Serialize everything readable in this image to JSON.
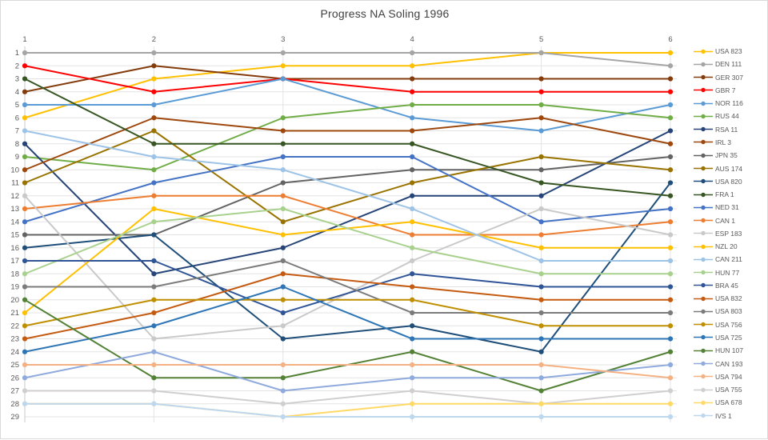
{
  "title": "Progress NA Soling 1996",
  "chart_data": {
    "type": "line",
    "title": "Progress NA Soling 1996",
    "xlabel": "",
    "ylabel": "",
    "x_ticks": [
      1,
      2,
      3,
      4,
      5,
      6
    ],
    "y_ticks": [
      1,
      2,
      3,
      4,
      5,
      6,
      7,
      8,
      9,
      10,
      11,
      12,
      13,
      14,
      15,
      16,
      17,
      18,
      19,
      20,
      21,
      22,
      23,
      24,
      25,
      26,
      27,
      28,
      29
    ],
    "y_axis_inverted": true,
    "ylim": [
      1,
      29
    ],
    "grid": true,
    "legend_position": "right",
    "note": "Bump chart of place per race; ties share the same rank value",
    "series": [
      {
        "name": "USA 823",
        "color": "#FFC000",
        "ranks": [
          6,
          3,
          2,
          2,
          1,
          1
        ]
      },
      {
        "name": "DEN 111",
        "color": "#A5A5A5",
        "ranks": [
          1,
          1,
          1,
          1,
          1,
          2
        ]
      },
      {
        "name": "GER 307",
        "color": "#843C0C",
        "ranks": [
          4,
          2,
          3,
          3,
          3,
          3
        ]
      },
      {
        "name": "GBR 7",
        "color": "#FF0000",
        "ranks": [
          2,
          4,
          3,
          4,
          4,
          4
        ]
      },
      {
        "name": "NOR 116",
        "color": "#5B9BD5",
        "ranks": [
          5,
          5,
          3,
          6,
          7,
          5
        ]
      },
      {
        "name": "RUS 44",
        "color": "#70AD47",
        "ranks": [
          9,
          10,
          6,
          5,
          5,
          6
        ]
      },
      {
        "name": "RSA 11",
        "color": "#264478",
        "ranks": [
          8,
          18,
          16,
          12,
          12,
          7
        ]
      },
      {
        "name": "IRL 3",
        "color": "#9E480E",
        "ranks": [
          10,
          6,
          7,
          7,
          6,
          8
        ]
      },
      {
        "name": "JPN 35",
        "color": "#636363",
        "ranks": [
          15,
          15,
          11,
          10,
          10,
          9
        ]
      },
      {
        "name": "AUS 174",
        "color": "#997300",
        "ranks": [
          11,
          7,
          14,
          11,
          9,
          10
        ]
      },
      {
        "name": "USA 820",
        "color": "#1F4E79",
        "ranks": [
          16,
          15,
          23,
          22,
          24,
          11
        ]
      },
      {
        "name": "FRA 1",
        "color": "#375623",
        "ranks": [
          3,
          8,
          8,
          8,
          11,
          12
        ]
      },
      {
        "name": "NED 31",
        "color": "#4472C4",
        "ranks": [
          14,
          11,
          9,
          9,
          14,
          13
        ]
      },
      {
        "name": "CAN 1",
        "color": "#ED7D31",
        "ranks": [
          13,
          12,
          12,
          15,
          15,
          14
        ]
      },
      {
        "name": "ESP 183",
        "color": "#C9C9C9",
        "ranks": [
          12,
          23,
          22,
          17,
          13,
          15
        ]
      },
      {
        "name": "NZL 20",
        "color": "#FFC000",
        "ranks": [
          21,
          13,
          15,
          14,
          16,
          16
        ]
      },
      {
        "name": "CAN 211",
        "color": "#9DC3E6",
        "ranks": [
          7,
          9,
          10,
          13,
          17,
          17
        ]
      },
      {
        "name": "HUN 77",
        "color": "#A9D18E",
        "ranks": [
          18,
          14,
          13,
          16,
          18,
          18
        ]
      },
      {
        "name": "BRA 45",
        "color": "#2F5597",
        "ranks": [
          17,
          17,
          21,
          18,
          19,
          19
        ]
      },
      {
        "name": "USA 832",
        "color": "#C55A11",
        "ranks": [
          23,
          21,
          18,
          19,
          20,
          20
        ]
      },
      {
        "name": "USA 803",
        "color": "#7B7B7B",
        "ranks": [
          19,
          19,
          17,
          21,
          21,
          21
        ]
      },
      {
        "name": "USA 756",
        "color": "#BF8F00",
        "ranks": [
          22,
          20,
          20,
          20,
          22,
          22
        ]
      },
      {
        "name": "USA 725",
        "color": "#2E75B6",
        "ranks": [
          24,
          22,
          19,
          23,
          23,
          23
        ]
      },
      {
        "name": "HUN 107",
        "color": "#538135",
        "ranks": [
          20,
          26,
          26,
          24,
          27,
          24
        ]
      },
      {
        "name": "CAN 193",
        "color": "#8FAADC",
        "ranks": [
          26,
          24,
          27,
          26,
          26,
          25
        ]
      },
      {
        "name": "USA 794",
        "color": "#F4B183",
        "ranks": [
          25,
          25,
          25,
          25,
          25,
          26
        ]
      },
      {
        "name": "USA 755",
        "color": "#D0CECE",
        "ranks": [
          27,
          27,
          28,
          27,
          28,
          27
        ]
      },
      {
        "name": "USA 678",
        "color": "#FFD966",
        "ranks": [
          28,
          28,
          29,
          28,
          28,
          28
        ]
      },
      {
        "name": "IVS 1",
        "color": "#BDD7EE",
        "ranks": [
          28,
          28,
          29,
          29,
          29,
          29
        ]
      }
    ]
  }
}
